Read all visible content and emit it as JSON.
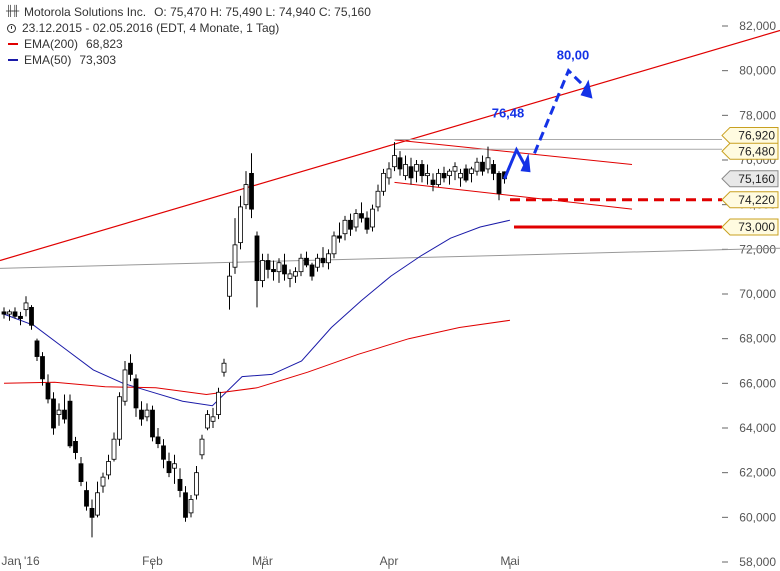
{
  "header": {
    "title": "Motorola Solutions Inc.",
    "ohlc": "O: 75,470  H: 75,490  L: 74,940  C: 75,160",
    "range": "23.12.2015 - 02.05.2016 (EDT, 4 Monate, 1 Tag)"
  },
  "legend": [
    {
      "label": "EMA(200)",
      "value": "68,823",
      "color": "#e00000"
    },
    {
      "label": "EMA(50)",
      "value": "73,303",
      "color": "#1a1aa8"
    }
  ],
  "colors": {
    "up": "#ffffff",
    "down": "#000000",
    "ema200": "#e00000",
    "ema50": "#1a1aa8",
    "projection": "#1432e6",
    "level": "#e00000"
  },
  "chart_data": {
    "type": "candlestick",
    "ylim": [
      58000,
      82000
    ],
    "y_ticks": [
      "82,000",
      "80,000",
      "78,000",
      "76,000",
      "74,000",
      "72,000",
      "70,000",
      "68,000",
      "66,000",
      "64,000",
      "62,000",
      "60,000",
      "58,000"
    ],
    "y_tick_values": [
      82000,
      80000,
      78000,
      76000,
      74000,
      72000,
      70000,
      68000,
      66000,
      64000,
      62000,
      60000,
      58000
    ],
    "x_labels": [
      {
        "label": "Jan '16",
        "date": "2016-01-04"
      },
      {
        "label": "Feb",
        "date": "2016-02-01"
      },
      {
        "label": "Mär",
        "date": "2016-03-01"
      },
      {
        "label": "Apr",
        "date": "2016-04-01"
      },
      {
        "label": "Mai",
        "date": "2016-05-02"
      }
    ],
    "candles": [
      [
        69.2,
        69.4,
        68.9,
        69.1
      ],
      [
        69.1,
        69.3,
        68.8,
        69.2
      ],
      [
        69.2,
        69.4,
        68.9,
        69.0
      ],
      [
        69.0,
        69.2,
        68.6,
        68.9
      ],
      [
        69.3,
        69.9,
        69.0,
        69.6
      ],
      [
        69.4,
        69.5,
        68.4,
        68.6
      ],
      [
        67.9,
        68.0,
        67.0,
        67.2
      ],
      [
        67.2,
        67.4,
        65.9,
        66.2
      ],
      [
        66.0,
        66.4,
        65.1,
        65.3
      ],
      [
        65.3,
        65.6,
        63.7,
        64.0
      ],
      [
        64.6,
        65.1,
        64.1,
        64.8
      ],
      [
        64.8,
        65.5,
        64.2,
        64.4
      ],
      [
        65.2,
        65.5,
        63.1,
        63.2
      ],
      [
        63.4,
        63.6,
        62.6,
        62.9
      ],
      [
        62.4,
        62.7,
        61.4,
        61.6
      ],
      [
        61.2,
        61.6,
        60.3,
        60.5
      ],
      [
        60.4,
        60.8,
        59.1,
        60.0
      ],
      [
        60.1,
        61.6,
        60.0,
        61.1
      ],
      [
        61.4,
        62.0,
        61.1,
        61.8
      ],
      [
        61.9,
        62.8,
        61.7,
        62.5
      ],
      [
        62.6,
        63.8,
        62.5,
        63.5
      ],
      [
        63.5,
        65.6,
        63.2,
        65.4
      ],
      [
        65.2,
        67.0,
        65.0,
        66.6
      ],
      [
        66.9,
        67.3,
        66.1,
        66.4
      ],
      [
        66.2,
        66.4,
        64.5,
        64.9
      ],
      [
        64.8,
        65.2,
        64.1,
        64.4
      ],
      [
        64.5,
        65.1,
        64.3,
        64.8
      ],
      [
        64.8,
        65.0,
        63.4,
        63.6
      ],
      [
        63.6,
        64.0,
        63.1,
        63.3
      ],
      [
        63.2,
        63.5,
        62.2,
        62.6
      ],
      [
        62.5,
        62.9,
        61.8,
        62.0
      ],
      [
        62.2,
        62.8,
        61.5,
        62.4
      ],
      [
        61.7,
        62.2,
        60.9,
        61.2
      ],
      [
        61.1,
        61.4,
        59.8,
        60.0
      ],
      [
        60.2,
        61.0,
        60.0,
        60.8
      ],
      [
        61.0,
        62.3,
        60.8,
        62.0
      ],
      [
        62.8,
        63.7,
        62.6,
        63.5
      ],
      [
        64.0,
        64.8,
        63.9,
        64.6
      ],
      [
        64.3,
        64.9,
        64.0,
        64.5
      ],
      [
        64.6,
        65.8,
        64.4,
        65.6
      ],
      [
        66.5,
        67.1,
        66.3,
        66.9
      ],
      [
        69.9,
        71.4,
        69.3,
        70.8
      ],
      [
        71.2,
        73.4,
        70.9,
        72.2
      ],
      [
        72.3,
        74.4,
        72.0,
        73.9
      ],
      [
        74.0,
        75.5,
        73.8,
        74.9
      ],
      [
        75.4,
        76.3,
        73.4,
        73.8
      ],
      [
        72.6,
        72.8,
        69.4,
        70.6
      ],
      [
        70.6,
        71.8,
        70.3,
        71.5
      ],
      [
        71.5,
        71.8,
        70.7,
        71.1
      ],
      [
        71.1,
        71.5,
        70.6,
        71.0
      ],
      [
        71.0,
        71.6,
        70.5,
        71.4
      ],
      [
        71.3,
        71.8,
        70.6,
        70.9
      ],
      [
        70.7,
        71.1,
        70.3,
        70.9
      ],
      [
        70.8,
        71.2,
        70.5,
        71.0
      ],
      [
        71.0,
        71.8,
        70.8,
        71.6
      ],
      [
        71.6,
        71.9,
        71.2,
        71.3
      ],
      [
        71.3,
        71.4,
        70.6,
        70.8
      ],
      [
        71.2,
        71.8,
        71.0,
        71.6
      ],
      [
        71.6,
        72.1,
        71.2,
        71.4
      ],
      [
        71.4,
        72.0,
        71.1,
        71.8
      ],
      [
        71.8,
        72.8,
        71.6,
        72.6
      ],
      [
        72.6,
        73.2,
        72.3,
        72.5
      ],
      [
        72.7,
        73.5,
        72.4,
        73.3
      ],
      [
        73.3,
        73.6,
        72.6,
        72.9
      ],
      [
        73.0,
        73.8,
        72.8,
        73.6
      ],
      [
        73.6,
        74.1,
        73.2,
        73.4
      ],
      [
        73.4,
        73.7,
        72.7,
        72.9
      ],
      [
        73.0,
        74.0,
        72.8,
        73.8
      ],
      [
        73.9,
        74.9,
        73.7,
        74.6
      ],
      [
        74.6,
        75.6,
        74.4,
        75.4
      ],
      [
        75.2,
        75.9,
        74.9,
        75.6
      ],
      [
        75.7,
        76.8,
        75.5,
        76.2
      ],
      [
        76.1,
        76.4,
        75.3,
        75.6
      ],
      [
        75.3,
        76.2,
        75.1,
        75.8
      ],
      [
        75.7,
        76.1,
        74.9,
        75.2
      ],
      [
        75.5,
        76.0,
        75.0,
        75.8
      ],
      [
        75.8,
        76.0,
        75.0,
        75.3
      ],
      [
        75.3,
        75.8,
        74.9,
        75.4
      ],
      [
        75.1,
        75.4,
        74.6,
        74.9
      ],
      [
        74.9,
        75.6,
        74.8,
        75.4
      ],
      [
        75.4,
        75.7,
        75.0,
        75.2
      ],
      [
        75.3,
        75.6,
        74.9,
        75.5
      ],
      [
        75.5,
        75.9,
        75.1,
        75.7
      ],
      [
        75.2,
        75.6,
        74.8,
        75.4
      ],
      [
        75.6,
        75.8,
        75.0,
        75.1
      ],
      [
        75.4,
        75.7,
        75.0,
        75.6
      ],
      [
        75.5,
        76.1,
        75.3,
        75.9
      ],
      [
        75.9,
        76.2,
        75.3,
        75.5
      ],
      [
        75.6,
        76.6,
        75.4,
        76.1
      ],
      [
        75.8,
        76.0,
        75.1,
        75.4
      ],
      [
        75.4,
        75.5,
        74.2,
        74.5
      ],
      [
        75.47,
        75.49,
        74.94,
        75.16
      ]
    ],
    "ema50": [
      66.3,
      66.4,
      67.0,
      68.5,
      69.7,
      70.8,
      71.7,
      72.5,
      73.0,
      73.303
    ],
    "ema200": [
      65.85,
      65.8,
      65.5,
      65.8,
      66.5,
      67.3,
      68.0,
      68.5,
      68.823
    ],
    "annotations": [
      {
        "label": "76,48",
        "kind": "target"
      },
      {
        "label": "80,00",
        "kind": "target"
      }
    ],
    "price_levels": [
      {
        "label": "76,480",
        "value": 76480,
        "style": "thin"
      },
      {
        "label": "76,920",
        "value": 76920,
        "style": "thin"
      },
      {
        "label": "75,160",
        "value": 75160,
        "style": "last"
      },
      {
        "label": "74,220",
        "value": 74220,
        "style": "dashed-red"
      },
      {
        "label": "73,000",
        "value": 73000,
        "style": "solid-red"
      }
    ]
  }
}
